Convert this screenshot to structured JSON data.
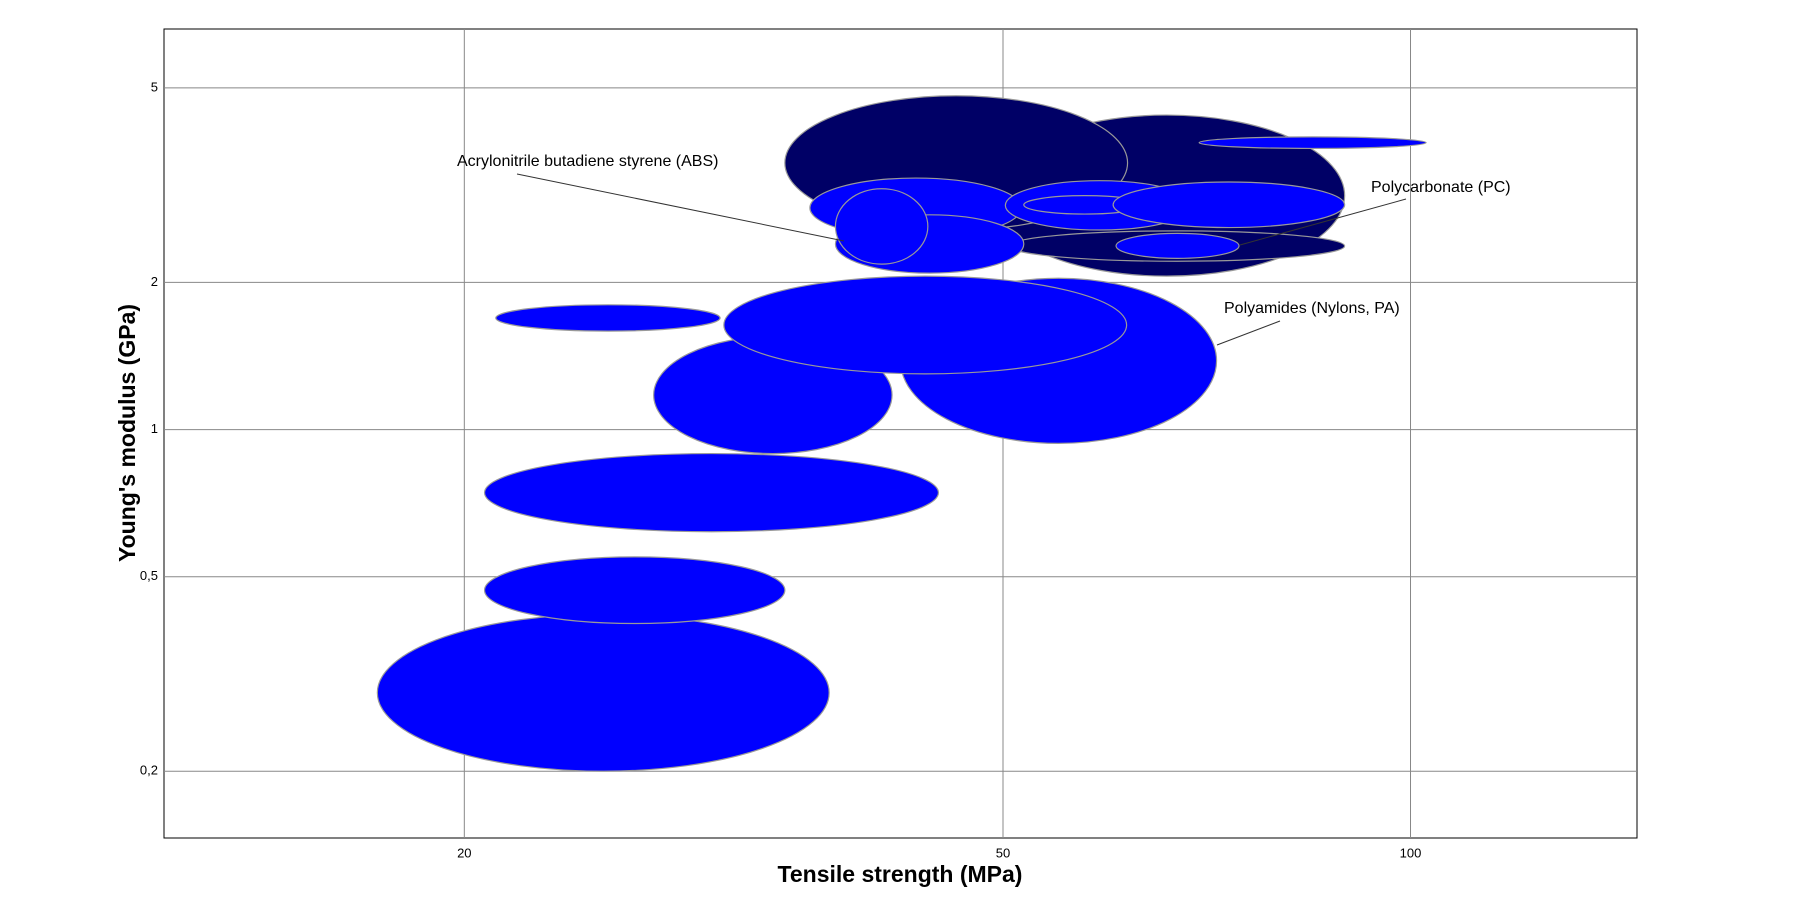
{
  "chart_data": {
    "type": "ellipse",
    "x_label": "Tensile strength (MPa)",
    "y_label": "Young's modulus (GPa)",
    "log_x": true,
    "log_y": true,
    "grid": true,
    "xlim": [
      12,
      147
    ],
    "ylim": [
      0.146,
      6.6
    ],
    "xticks": [
      20,
      50,
      100
    ],
    "yticks": [
      {
        "value": 0.2,
        "label": "0,2"
      },
      {
        "value": 0.5,
        "label": "0,5"
      },
      1,
      2,
      5
    ],
    "ellipses": [
      {
        "xmin": 17.25,
        "xmax": 37.2,
        "ymin": 0.2,
        "ymax": 0.419,
        "color": "#0000ff"
      },
      {
        "xmin": 20.7,
        "xmax": 34.5,
        "ymin": 0.401,
        "ymax": 0.549,
        "color": "#0000ff"
      },
      {
        "xmin": 20.7,
        "xmax": 44.8,
        "ymin": 0.618,
        "ymax": 0.893,
        "color": "#0000ff"
      },
      {
        "xmin": 27.6,
        "xmax": 41.4,
        "ymin": 0.893,
        "ymax": 1.55,
        "color": "#0000ff"
      },
      {
        "xmin": 42.0,
        "xmax": 71.9,
        "ymin": 0.937,
        "ymax": 2.04,
        "color": "#0000ff"
      },
      {
        "xmin": 31.1,
        "xmax": 61.7,
        "ymin": 1.3,
        "ymax": 2.06,
        "color": "#0000ff"
      },
      {
        "xmin": 21.1,
        "xmax": 30.9,
        "ymin": 1.59,
        "ymax": 1.8,
        "color": "#0000ff"
      },
      {
        "xmin": 48.8,
        "xmax": 89.4,
        "ymin": 2.06,
        "ymax": 4.4,
        "color": "#000066"
      },
      {
        "xmin": 34.5,
        "xmax": 61.8,
        "ymin": 2.56,
        "ymax": 4.82,
        "color": "#000066"
      },
      {
        "xmin": 50.5,
        "xmax": 89.4,
        "ymin": 2.21,
        "ymax": 2.55,
        "color": "#000066"
      },
      {
        "xmin": 69.8,
        "xmax": 102.7,
        "ymin": 3.76,
        "ymax": 3.97,
        "color": "#0000ff"
      },
      {
        "xmin": 36.0,
        "xmax": 51.6,
        "ymin": 2.47,
        "ymax": 3.27,
        "color": "#0000ff"
      },
      {
        "xmin": 37.6,
        "xmax": 51.8,
        "ymin": 2.09,
        "ymax": 2.75,
        "color": "#0000ff"
      },
      {
        "xmin": 37.6,
        "xmax": 44.0,
        "ymin": 2.18,
        "ymax": 3.11,
        "color": "#0000ff"
      },
      {
        "xmin": 50.2,
        "xmax": 69.1,
        "ymin": 2.56,
        "ymax": 3.23,
        "color": "#0000ff"
      },
      {
        "xmin": 51.8,
        "xmax": 63.7,
        "ymin": 2.76,
        "ymax": 3.01,
        "color": "#0000ff"
      },
      {
        "xmin": 60.3,
        "xmax": 89.4,
        "ymin": 2.59,
        "ymax": 3.21,
        "color": "#0000ff"
      },
      {
        "xmin": 60.6,
        "xmax": 74.7,
        "ymin": 2.24,
        "ymax": 2.52,
        "color": "#0000ff"
      }
    ],
    "annotations": [
      "Acrylonitrile butadiene styrene (ABS)",
      "Polycarbonate (PC)",
      "Polyamides (Nylons, PA)"
    ]
  }
}
